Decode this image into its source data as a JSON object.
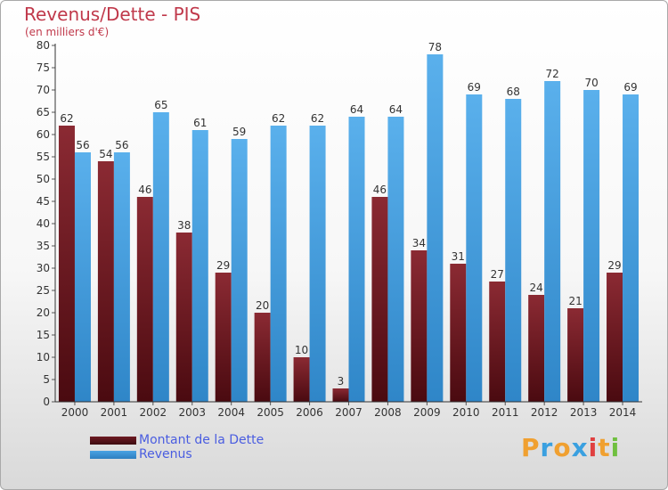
{
  "chart_data": {
    "type": "bar",
    "title": "Revenus/Dette - PIS",
    "subtitle": "(en milliers d'€)",
    "categories": [
      "2000",
      "2001",
      "2002",
      "2003",
      "2004",
      "2005",
      "2006",
      "2007",
      "2008",
      "2009",
      "2010",
      "2011",
      "2012",
      "2013",
      "2014"
    ],
    "series": [
      {
        "name": "Montant de la Dette",
        "color": "#7a1f2a",
        "values": [
          62,
          54,
          46,
          38,
          29,
          20,
          10,
          3,
          46,
          34,
          31,
          27,
          24,
          21,
          29
        ]
      },
      {
        "name": "Revenus",
        "color": "#4aa3e3",
        "values": [
          56,
          56,
          65,
          61,
          59,
          62,
          62,
          64,
          64,
          78,
          69,
          68,
          72,
          70,
          69
        ]
      }
    ],
    "ylim": [
      0,
      80
    ],
    "yticks": [
      0,
      5,
      10,
      15,
      20,
      25,
      30,
      35,
      40,
      45,
      50,
      55,
      60,
      65,
      70,
      75,
      80
    ],
    "grid": false,
    "legend_position": "bottom-left"
  },
  "legend": {
    "debt_label": "Montant de la Dette",
    "revenue_label": "Revenus",
    "debt_color": "#6e1a22",
    "revenue_color": "#4aa3e3"
  },
  "logo": {
    "letters": [
      "P",
      "r",
      "o",
      "x",
      "i",
      "t",
      "i"
    ],
    "colors": [
      "#f0a030",
      "#3aa0e0",
      "#f0a030",
      "#3aa0e0",
      "#e04040",
      "#f0a030",
      "#70c040"
    ]
  }
}
